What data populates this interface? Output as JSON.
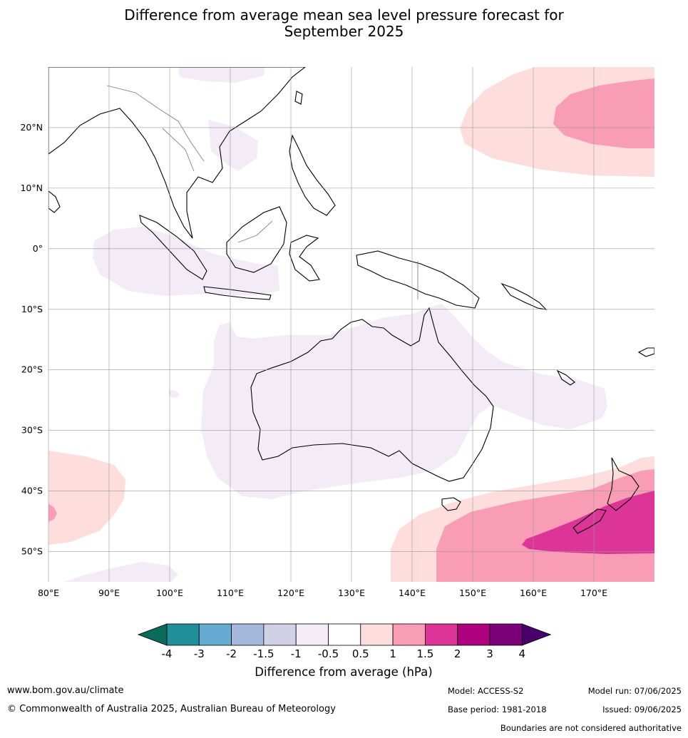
{
  "title": {
    "line1": "Difference from average mean sea level pressure forecast for",
    "line2": "September 2025"
  },
  "map": {
    "extent": {
      "lon": [
        80,
        180
      ],
      "lat": [
        -55,
        30
      ]
    },
    "lat_ticks": [
      {
        "value": 20,
        "label": "20°N"
      },
      {
        "value": 10,
        "label": "10°N"
      },
      {
        "value": 0,
        "label": "0°"
      },
      {
        "value": -10,
        "label": "10°S"
      },
      {
        "value": -20,
        "label": "20°S"
      },
      {
        "value": -30,
        "label": "30°S"
      },
      {
        "value": -40,
        "label": "40°S"
      },
      {
        "value": -50,
        "label": "50°S"
      }
    ],
    "lon_ticks": [
      {
        "value": 80,
        "label": "80°E"
      },
      {
        "value": 90,
        "label": "90°E"
      },
      {
        "value": 100,
        "label": "100°E"
      },
      {
        "value": 110,
        "label": "110°E"
      },
      {
        "value": 120,
        "label": "120°E"
      },
      {
        "value": 130,
        "label": "130°E"
      },
      {
        "value": 140,
        "label": "140°E"
      },
      {
        "value": 150,
        "label": "150°E"
      },
      {
        "value": 160,
        "label": "160°E"
      },
      {
        "value": 170,
        "label": "170°E"
      }
    ]
  },
  "colorbar": {
    "ticks": [
      "-4",
      "-3",
      "-2",
      "-1.5",
      "-1",
      "-0.5",
      "0.5",
      "1",
      "1.5",
      "2",
      "3",
      "4"
    ],
    "colors": {
      "below": "#0b6b5a",
      "bins": [
        "#1f9099",
        "#66abd2",
        "#a4b9dc",
        "#d0d1e6",
        "#f3ebf5",
        "#ffffff",
        "#fddedd",
        "#f99db6",
        "#dd3497",
        "#ad017e",
        "#7a0177"
      ],
      "above": "#49006a"
    },
    "label": "Difference from average (hPa)"
  },
  "footer": {
    "website": "www.bom.gov.au/climate",
    "copyright": "© Commonwealth of Australia 2025, Australian Bureau of Meteorology",
    "model": "Model: ACCESS-S2",
    "base_period": "Base period: 1981-2018",
    "model_run": "Model run: 07/06/2025",
    "issued": "Issued: 09/06/2025",
    "disclaimer": "Boundaries are not considered authoritative"
  }
}
